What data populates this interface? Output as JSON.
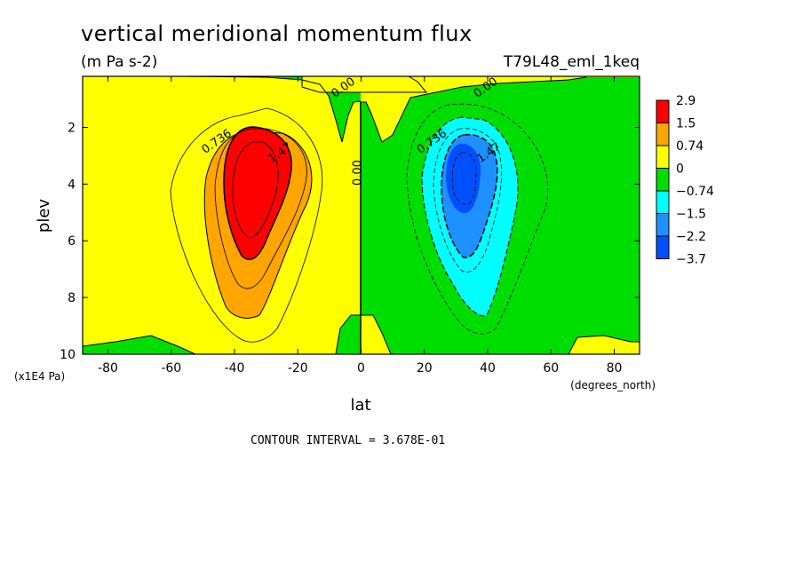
{
  "title": "vertical meridional momentum flux",
  "units": "(m Pa s-2)",
  "run_name": "T79L48_eml_1keq",
  "footer_note": "CONTOUR INTERVAL = 3.678E-01",
  "chart_data": {
    "type": "contour",
    "xlabel": "lat",
    "xunits": "(degrees_north)",
    "ylabel": "plev",
    "yunits": "(x1E4 Pa)",
    "xlim": [
      -88,
      88
    ],
    "ylim": [
      10,
      0.2
    ],
    "xticks": [
      -80,
      -60,
      -40,
      -20,
      0,
      20,
      40,
      60,
      80
    ],
    "xtick_labels": [
      "-80",
      "-60",
      "-40",
      "-20",
      "0",
      "20",
      "40",
      "60",
      "80"
    ],
    "yticks": [
      2,
      4,
      6,
      8,
      10
    ],
    "ytick_labels": [
      "2",
      "4",
      "6",
      "8",
      "10"
    ],
    "contour_interval": 0.3678,
    "contour_labels": [
      {
        "text": "0.736",
        "lat": -45,
        "plev": 2.6
      },
      {
        "text": "1.47",
        "lat": -25,
        "plev": 3.0
      },
      {
        "text": "0.00",
        "lat": 0,
        "plev": 3.6
      },
      {
        "text": "0.00",
        "lat": -5,
        "plev": 0.7
      },
      {
        "text": "0.00",
        "lat": 40,
        "plev": 0.7
      },
      {
        "text": "0.736",
        "lat": 23,
        "plev": 2.6
      },
      {
        "text": "1.47",
        "lat": 41,
        "plev": 3.0
      }
    ],
    "features": [
      {
        "name": "positive-max",
        "lat": -33,
        "plev": 3.8,
        "value": 2.9
      },
      {
        "name": "negative-min",
        "lat": 33,
        "plev": 3.8,
        "value": -3.7
      }
    ],
    "colorbar": {
      "labels": [
        "2.9",
        "1.5",
        "0.74",
        "0",
        "−0.74",
        "−1.5",
        "−2.2",
        "−3.7"
      ],
      "colors": [
        "#ff0000",
        "#ffa500",
        "#ffff00",
        "#00dd00",
        "#00ffff",
        "#1e90ff",
        "#0050ff"
      ]
    }
  }
}
